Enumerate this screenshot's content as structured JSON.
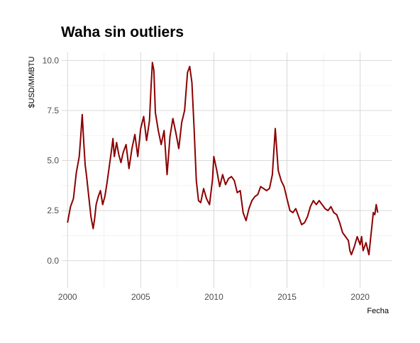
{
  "chart_data": {
    "type": "line",
    "title": "Waha sin outliers",
    "xlabel": "Fecha",
    "ylabel": "$USD/MMBTU",
    "xlim": [
      1999.6,
      2022.2
    ],
    "ylim": [
      -1.35,
      10.4
    ],
    "x_ticks": [
      2000,
      2005,
      2010,
      2015,
      2020
    ],
    "x_tick_labels": [
      "2000",
      "2005",
      "2010",
      "2015",
      "2020"
    ],
    "y_ticks": [
      0,
      2.5,
      5,
      7.5,
      10
    ],
    "y_tick_labels": [
      "0.0",
      "2.5",
      "5.0",
      "7.5",
      "10.0"
    ],
    "grid": true,
    "line_color": "#8b0000",
    "series": [
      {
        "name": "",
        "x": [
          2000.0,
          2000.2,
          2000.4,
          2000.6,
          2000.8,
          2000.9,
          2001.0,
          2001.1,
          2001.2,
          2001.3,
          2001.45,
          2001.6,
          2001.75,
          2001.85,
          2001.95,
          2002.1,
          2002.25,
          2002.4,
          2002.55,
          2002.7,
          2002.85,
          2003.0,
          2003.1,
          2003.2,
          2003.35,
          2003.5,
          2003.65,
          2003.8,
          2004.0,
          2004.2,
          2004.4,
          2004.6,
          2004.8,
          2005.0,
          2005.2,
          2005.4,
          2005.6,
          2005.7,
          2005.8,
          2005.9,
          2006.0,
          2006.2,
          2006.4,
          2006.6,
          2006.8,
          2007.0,
          2007.2,
          2007.4,
          2007.6,
          2007.8,
          2008.0,
          2008.2,
          2008.35,
          2008.5,
          2008.65,
          2008.8,
          2008.95,
          2009.1,
          2009.3,
          2009.5,
          2009.7,
          2009.9,
          2010.0,
          2010.2,
          2010.4,
          2010.6,
          2010.8,
          2011.0,
          2011.2,
          2011.4,
          2011.6,
          2011.8,
          2012.0,
          2012.2,
          2012.4,
          2012.6,
          2012.8,
          2013.0,
          2013.2,
          2013.4,
          2013.6,
          2013.8,
          2014.0,
          2014.2,
          2014.4,
          2014.6,
          2014.8,
          2015.0,
          2015.2,
          2015.4,
          2015.6,
          2015.8,
          2016.0,
          2016.2,
          2016.4,
          2016.6,
          2016.8,
          2017.0,
          2017.2,
          2017.4,
          2017.6,
          2017.8,
          2018.0,
          2018.2,
          2018.4,
          2018.6,
          2018.8,
          2019.0,
          2019.2,
          2019.3,
          2019.4,
          2019.6,
          2019.8,
          2020.0,
          2020.1,
          2020.2,
          2020.4,
          2020.6,
          2020.8,
          2020.9,
          2021.0,
          2021.1,
          2021.2
        ],
        "values": [
          1.9,
          2.7,
          3.1,
          4.4,
          5.2,
          6.2,
          7.3,
          6.0,
          4.8,
          4.2,
          3.2,
          2.2,
          1.6,
          2.1,
          2.8,
          3.2,
          3.5,
          2.8,
          3.2,
          3.9,
          4.7,
          5.5,
          6.1,
          5.2,
          5.9,
          5.3,
          4.9,
          5.4,
          5.8,
          4.6,
          5.6,
          6.3,
          5.2,
          6.6,
          7.2,
          6.0,
          7.0,
          8.6,
          9.9,
          9.5,
          7.4,
          6.5,
          5.8,
          6.5,
          4.3,
          6.2,
          7.1,
          6.4,
          5.6,
          6.9,
          7.5,
          9.4,
          9.7,
          8.9,
          6.6,
          4.0,
          3.0,
          2.9,
          3.6,
          3.1,
          2.8,
          4.0,
          5.2,
          4.5,
          3.7,
          4.3,
          3.8,
          4.1,
          4.2,
          4.0,
          3.4,
          3.5,
          2.4,
          2.0,
          2.6,
          3.0,
          3.2,
          3.3,
          3.7,
          3.6,
          3.5,
          3.6,
          4.3,
          6.6,
          4.5,
          4.0,
          3.7,
          3.1,
          2.5,
          2.4,
          2.6,
          2.2,
          1.8,
          1.9,
          2.2,
          2.7,
          3.0,
          2.8,
          3.0,
          2.8,
          2.6,
          2.5,
          2.7,
          2.4,
          2.3,
          1.9,
          1.4,
          1.2,
          1.0,
          0.5,
          0.3,
          0.7,
          1.2,
          0.8,
          1.2,
          0.5,
          0.9,
          0.3,
          1.7,
          2.4,
          2.3,
          2.8,
          2.4
        ]
      }
    ]
  }
}
